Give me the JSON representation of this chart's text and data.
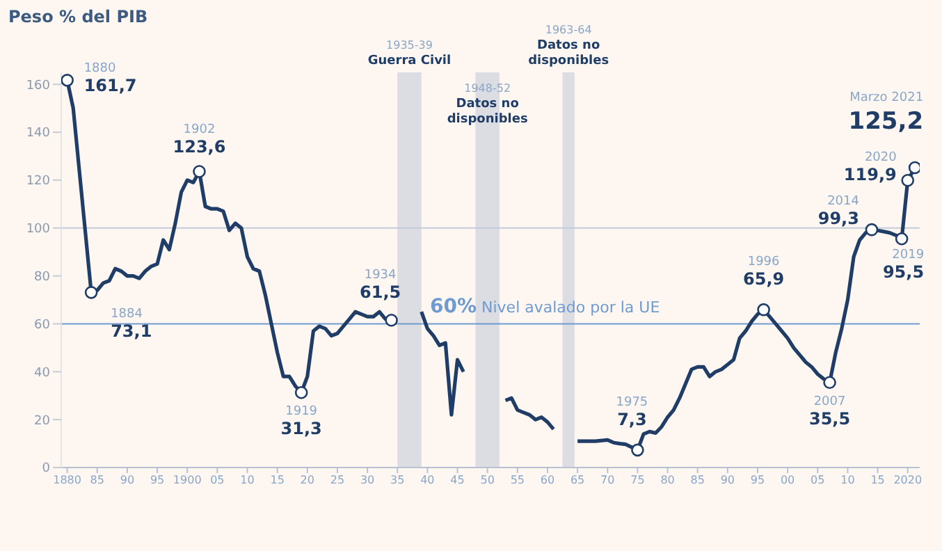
{
  "chart_data": {
    "type": "line",
    "title": "Peso % del PIB",
    "xlim": [
      1879,
      2022
    ],
    "xticks": [
      {
        "value": 1880,
        "label": "1880"
      },
      {
        "value": 1885,
        "label": "85"
      },
      {
        "value": 1890,
        "label": "90"
      },
      {
        "value": 1895,
        "label": "95"
      },
      {
        "value": 1900,
        "label": "1900"
      },
      {
        "value": 1905,
        "label": "05"
      },
      {
        "value": 1910,
        "label": "10"
      },
      {
        "value": 1915,
        "label": "15"
      },
      {
        "value": 1920,
        "label": "20"
      },
      {
        "value": 1925,
        "label": "25"
      },
      {
        "value": 1930,
        "label": "30"
      },
      {
        "value": 1935,
        "label": "35"
      },
      {
        "value": 1940,
        "label": "40"
      },
      {
        "value": 1945,
        "label": "45"
      },
      {
        "value": 1950,
        "label": "50"
      },
      {
        "value": 1955,
        "label": "55"
      },
      {
        "value": 1960,
        "label": "60"
      },
      {
        "value": 1965,
        "label": "65"
      },
      {
        "value": 1970,
        "label": "70"
      },
      {
        "value": 1975,
        "label": "75"
      },
      {
        "value": 1980,
        "label": "80"
      },
      {
        "value": 1985,
        "label": "85"
      },
      {
        "value": 1990,
        "label": "90"
      },
      {
        "value": 1995,
        "label": "95"
      },
      {
        "value": 2000,
        "label": "00"
      },
      {
        "value": 2005,
        "label": "05"
      },
      {
        "value": 2010,
        "label": "10"
      },
      {
        "value": 2015,
        "label": "15"
      },
      {
        "value": 2020,
        "label": "2020"
      }
    ],
    "ylim": [
      0,
      165
    ],
    "yticks": [
      0,
      20,
      40,
      60,
      80,
      100,
      120,
      140,
      160
    ],
    "series": [
      {
        "color": "#1f3d66",
        "x": [
          1880,
          1881,
          1884,
          1885,
          1886,
          1887,
          1888,
          1889,
          1890,
          1891,
          1892,
          1893,
          1894,
          1895,
          1896,
          1897,
          1898,
          1899,
          1900,
          1901,
          1902,
          1903,
          1904,
          1905,
          1906,
          1907,
          1908,
          1909,
          1910,
          1911,
          1912,
          1913,
          1914,
          1915,
          1916,
          1917,
          1918,
          1919,
          1920,
          1921,
          1922,
          1923,
          1924,
          1925,
          1926,
          1927,
          1928,
          1929,
          1930,
          1931,
          1932,
          1933,
          1934,
          1937,
          1939,
          1940,
          1941,
          1942,
          1943,
          1944,
          1945,
          1946,
          1950,
          1953,
          1954,
          1955,
          1956,
          1957,
          1958,
          1959,
          1960,
          1961,
          1963,
          1965,
          1968,
          1970,
          1971,
          1972,
          1973,
          1975,
          1976,
          1977,
          1978,
          1979,
          1980,
          1981,
          1982,
          1983,
          1984,
          1985,
          1986,
          1987,
          1988,
          1989,
          1990,
          1991,
          1992,
          1993,
          1994,
          1995,
          1996,
          1997,
          1998,
          1999,
          2000,
          2001,
          2002,
          2003,
          2004,
          2005,
          2006,
          2007,
          2008,
          2009,
          2010,
          2011,
          2012,
          2013,
          2014,
          2015,
          2016,
          2017,
          2018,
          2019,
          2020,
          2021.2
        ],
        "values": [
          161.7,
          150,
          73.1,
          74,
          77,
          78,
          83,
          82,
          80,
          80,
          79,
          82,
          84,
          85,
          95,
          91,
          102,
          115,
          120,
          119,
          123.6,
          109,
          108,
          108,
          107,
          99,
          102,
          100,
          88,
          83,
          82,
          72,
          60,
          48,
          38,
          38,
          34,
          31.3,
          38,
          57,
          59,
          58,
          55,
          56,
          59,
          62,
          65,
          64,
          63,
          63,
          65,
          62,
          61.5,
          null,
          65,
          58,
          55,
          51,
          52,
          22,
          45,
          40,
          null,
          28,
          29,
          24,
          23,
          22,
          20,
          21,
          19,
          16,
          null,
          11,
          11,
          11.5,
          10.4,
          10,
          9.7,
          7.3,
          14,
          15,
          14.4,
          17,
          21,
          24,
          29,
          35,
          41,
          42,
          42,
          38,
          40,
          41,
          43,
          45,
          54,
          57,
          61,
          64,
          65.9,
          63,
          60,
          57,
          54,
          50,
          47,
          44,
          42,
          39,
          37,
          35.5,
          48,
          58,
          70,
          88,
          95,
          98,
          99.3,
          99,
          98.5,
          98,
          97,
          95.5,
          119.9,
          125.2
        ]
      },
      {
        "type": "scatter",
        "color": "#1f3d66",
        "x": [
          1880,
          1884,
          1902,
          1919,
          1934,
          1975,
          1996,
          2007,
          2014,
          2019,
          2020,
          2021.2
        ],
        "values": [
          161.7,
          73.1,
          123.6,
          31.3,
          61.5,
          7.3,
          65.9,
          35.5,
          99.3,
          95.5,
          119.9,
          125.2
        ]
      }
    ],
    "ref_lines": [
      {
        "axis": "y",
        "value": 100,
        "color": "#c3ccd8"
      },
      {
        "axis": "y",
        "value": 60,
        "label": "60% Nivel avalado por la UE",
        "color": "#6f9bd0"
      }
    ],
    "bands": [
      {
        "axis": "x",
        "from": 1935,
        "to": 1939,
        "label": "1935-39\nGuerra Civil",
        "color": "#dcdce3"
      },
      {
        "axis": "x",
        "from": 1948,
        "to": 1952,
        "label": "1948-52\nDatos no\ndisponibles",
        "color": "#dcdce3"
      },
      {
        "axis": "x",
        "from": 1962.5,
        "to": 1964.5,
        "label": "1963-64\nDatos no\ndisponibles",
        "color": "#dcdce3"
      }
    ],
    "annotations": [
      {
        "text": "1880\n161,7",
        "x": 1880,
        "y": 161.7
      },
      {
        "text": "1884\n73,1",
        "x": 1884,
        "y": 73.1
      },
      {
        "text": "1902\n123,6",
        "x": 1902,
        "y": 123.6
      },
      {
        "text": "1919\n31,3",
        "x": 1919,
        "y": 31.3
      },
      {
        "text": "1934\n61,5",
        "x": 1934,
        "y": 61.5
      },
      {
        "text": "1975\n7,3",
        "x": 1975,
        "y": 7.3
      },
      {
        "text": "1996\n65,9",
        "x": 1996,
        "y": 65.9
      },
      {
        "text": "2007\n35,5",
        "x": 2007,
        "y": 35.5
      },
      {
        "text": "2014\n99,3",
        "x": 2014,
        "y": 99.3
      },
      {
        "text": "2019\n95,5",
        "x": 2019,
        "y": 95.5
      },
      {
        "text": "2020\n119,9",
        "x": 2020,
        "y": 119.9
      },
      {
        "text": "Marzo 2021\n125,2",
        "x": 2021.2,
        "y": 125.2
      }
    ],
    "grid": false
  }
}
